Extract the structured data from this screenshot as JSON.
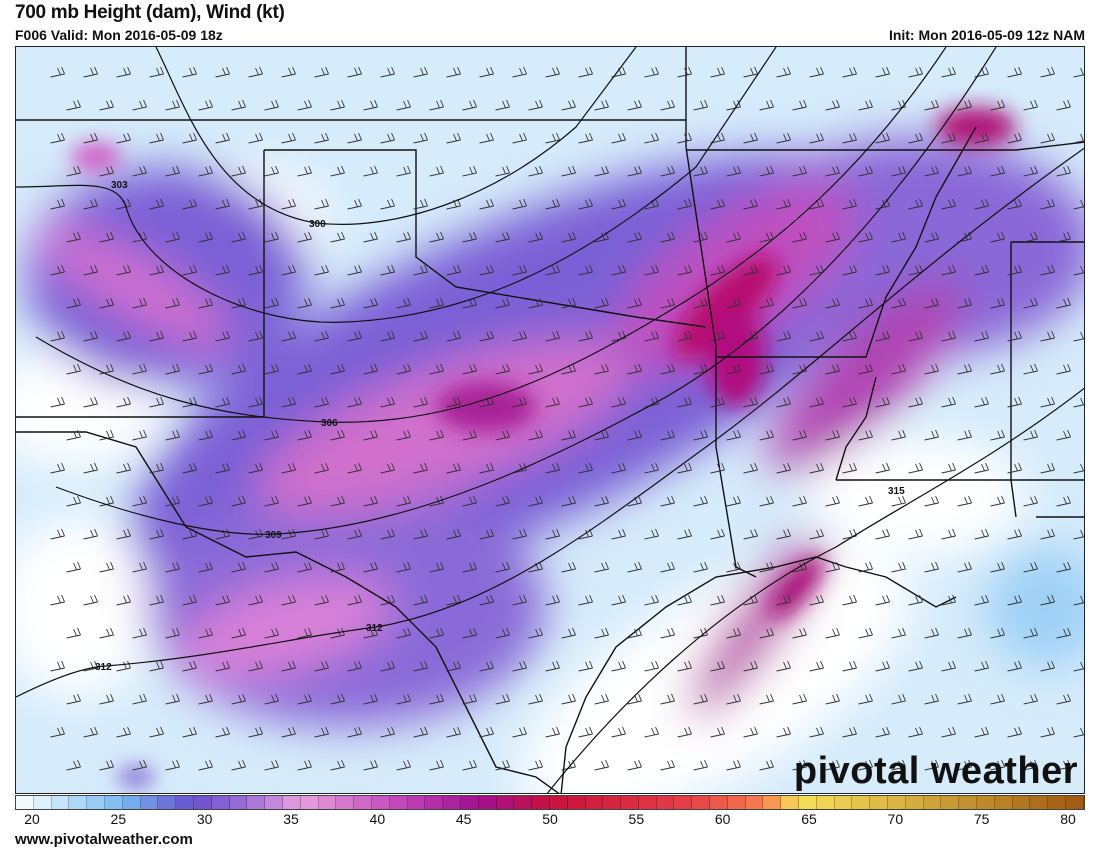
{
  "header": {
    "title": "700 mb Height (dam), Wind (kt)",
    "valid": "F006 Valid: Mon 2016-05-09 18z",
    "init": "Init: Mon 2016-05-09 12z NAM"
  },
  "colorbar": {
    "min": 20,
    "max": 80,
    "tick_labels": [
      "20",
      "25",
      "30",
      "35",
      "40",
      "45",
      "50",
      "55",
      "60",
      "65",
      "70",
      "75",
      "80"
    ],
    "color_stops": [
      {
        "v": 20,
        "c": "#ffffff"
      },
      {
        "v": 23,
        "c": "#b8e0fa"
      },
      {
        "v": 26,
        "c": "#78b8f0"
      },
      {
        "v": 30,
        "c": "#6a4fcf"
      },
      {
        "v": 33,
        "c": "#a070d8"
      },
      {
        "v": 36,
        "c": "#e8a0e0"
      },
      {
        "v": 42,
        "c": "#c040b8"
      },
      {
        "v": 46,
        "c": "#a01090"
      },
      {
        "v": 50,
        "c": "#c8103c"
      },
      {
        "v": 58,
        "c": "#e84048"
      },
      {
        "v": 62,
        "c": "#f88050"
      },
      {
        "v": 64,
        "c": "#f8e058"
      },
      {
        "v": 70,
        "c": "#d8b040"
      },
      {
        "v": 80,
        "c": "#a05810"
      }
    ]
  },
  "contour_labels": [
    "303",
    "300",
    "306",
    "309",
    "312",
    "312",
    "315"
  ],
  "footer": {
    "url": "www.pivotalweather.com"
  },
  "logo": "pivotal weather"
}
